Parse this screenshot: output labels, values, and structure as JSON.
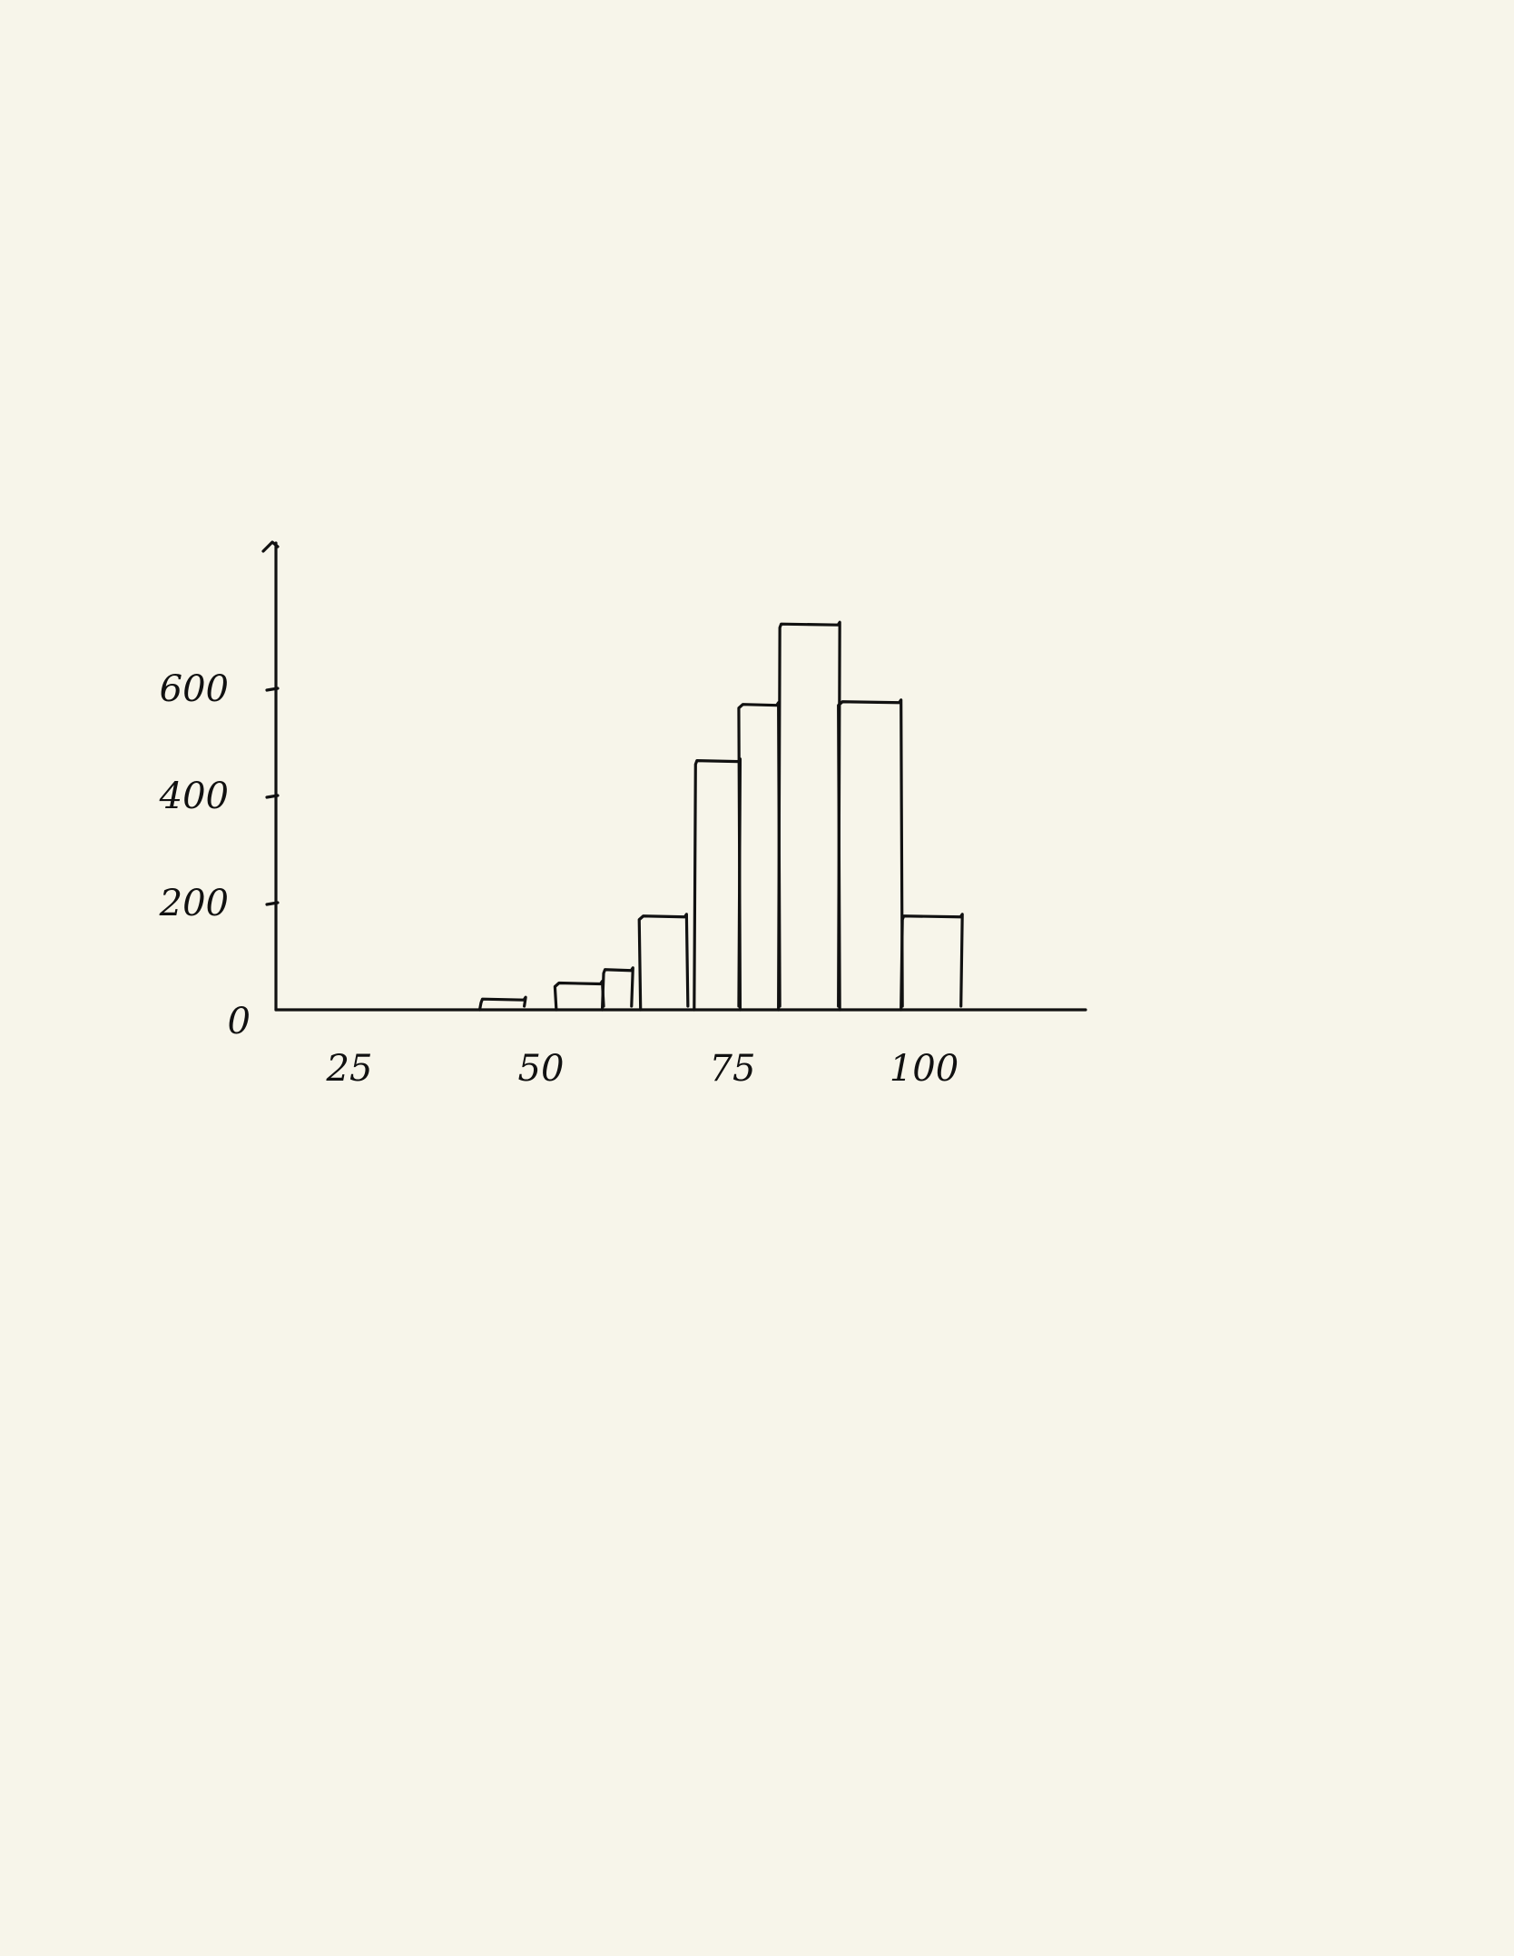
{
  "chart_data": {
    "type": "bar",
    "style": "hand-drawn histogram",
    "bins": [
      {
        "x0": 42,
        "x1": 48,
        "value": 20
      },
      {
        "x0": 52,
        "x1": 58,
        "value": 50
      },
      {
        "x0": 58,
        "x1": 62,
        "value": 75
      },
      {
        "x0": 63,
        "x1": 69,
        "value": 175
      },
      {
        "x0": 70,
        "x1": 76,
        "value": 465
      },
      {
        "x0": 76,
        "x1": 81,
        "value": 570
      },
      {
        "x0": 81,
        "x1": 89,
        "value": 720
      },
      {
        "x0": 89,
        "x1": 97,
        "value": 575
      },
      {
        "x0": 97,
        "x1": 105,
        "value": 175
      }
    ],
    "xticks": [
      {
        "value": 25,
        "label": "25"
      },
      {
        "value": 50,
        "label": "50"
      },
      {
        "value": 75,
        "label": "75"
      },
      {
        "value": 100,
        "label": "100"
      }
    ],
    "yticks": [
      {
        "value": 0,
        "label": "0"
      },
      {
        "value": 200,
        "label": "200"
      },
      {
        "value": 400,
        "label": "400"
      },
      {
        "value": 600,
        "label": "600"
      }
    ],
    "xlim": [
      20,
      115
    ],
    "ylim": [
      0,
      850
    ],
    "grid": false,
    "title": "",
    "xlabel": "",
    "ylabel": ""
  }
}
